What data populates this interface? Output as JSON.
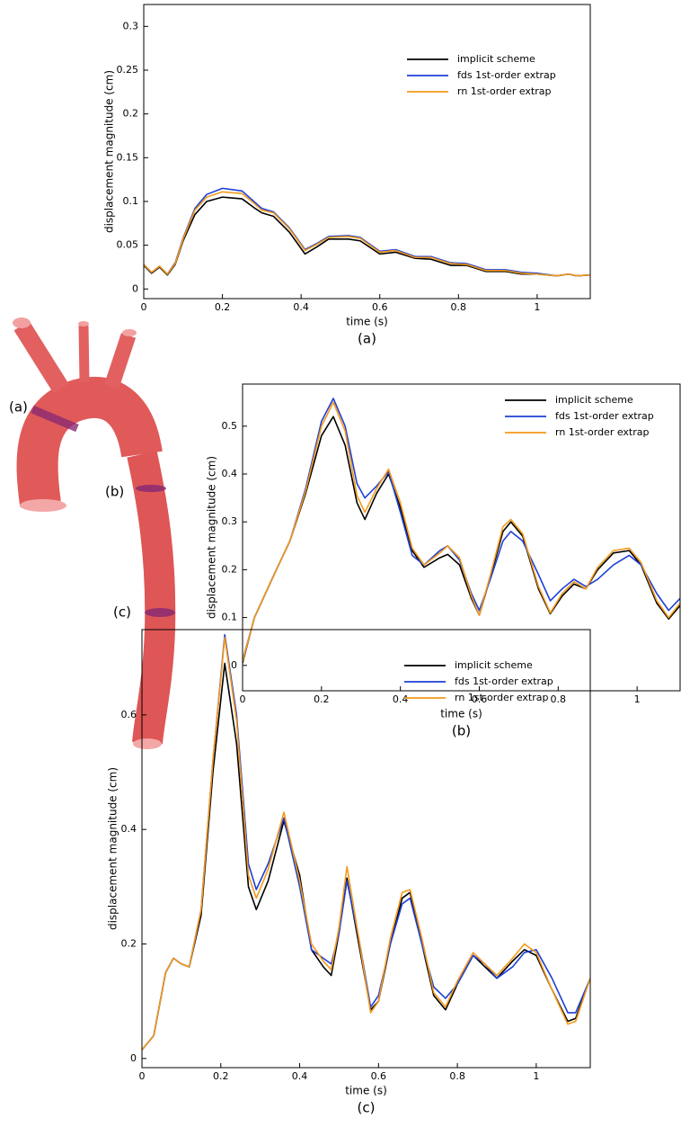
{
  "aorta_labels": [
    "(a)",
    "(b)",
    "(c)"
  ],
  "chart_data": [
    {
      "type": "line",
      "caption": "(a)",
      "xlabel": "time (s)",
      "ylabel": "displacement magnitude (cm)",
      "legend": "upper right",
      "xlim": [
        0,
        1.135
      ],
      "ylim": [
        -0.011,
        0.325
      ],
      "xticks": [
        0,
        0.2,
        0.4,
        0.6,
        0.8,
        1
      ],
      "yticks": [
        0,
        0.05,
        0.1,
        0.15,
        0.2,
        0.25,
        0.3
      ],
      "x": [
        0,
        0.02,
        0.04,
        0.06,
        0.08,
        0.1,
        0.13,
        0.16,
        0.2,
        0.25,
        0.28,
        0.3,
        0.33,
        0.37,
        0.41,
        0.44,
        0.47,
        0.52,
        0.55,
        0.6,
        0.64,
        0.69,
        0.73,
        0.78,
        0.82,
        0.87,
        0.92,
        0.96,
        1.0,
        1.05,
        1.08,
        1.1,
        1.135
      ],
      "series": [
        {
          "name": "implicit scheme",
          "color": "#000000",
          "values": [
            0.027,
            0.018,
            0.025,
            0.016,
            0.028,
            0.055,
            0.085,
            0.1,
            0.105,
            0.103,
            0.093,
            0.087,
            0.083,
            0.065,
            0.04,
            0.048,
            0.057,
            0.057,
            0.055,
            0.04,
            0.042,
            0.035,
            0.034,
            0.027,
            0.027,
            0.02,
            0.02,
            0.017,
            0.017,
            0.015,
            0.017,
            0.015,
            0.016
          ]
        },
        {
          "name": "fds 1st-order extrap",
          "color": "#1f3fd6",
          "values": [
            0.028,
            0.019,
            0.026,
            0.017,
            0.03,
            0.058,
            0.092,
            0.108,
            0.115,
            0.112,
            0.1,
            0.092,
            0.088,
            0.07,
            0.045,
            0.052,
            0.06,
            0.061,
            0.059,
            0.043,
            0.045,
            0.037,
            0.037,
            0.03,
            0.029,
            0.022,
            0.022,
            0.019,
            0.018,
            0.015,
            0.017,
            0.015,
            0.016
          ]
        },
        {
          "name": "rn 1st-order extrap",
          "color": "#f39a1a",
          "values": [
            0.028,
            0.019,
            0.026,
            0.017,
            0.029,
            0.057,
            0.09,
            0.105,
            0.111,
            0.109,
            0.098,
            0.09,
            0.087,
            0.069,
            0.044,
            0.051,
            0.059,
            0.06,
            0.058,
            0.042,
            0.044,
            0.036,
            0.036,
            0.029,
            0.028,
            0.021,
            0.021,
            0.018,
            0.017,
            0.015,
            0.017,
            0.015,
            0.016
          ]
        }
      ]
    },
    {
      "type": "line",
      "caption": "(b)",
      "xlabel": "time (s)",
      "ylabel": "displacement magnitude (cm)",
      "legend": "upper right",
      "xlim": [
        0,
        1.109
      ],
      "ylim": [
        -0.053,
        0.588
      ],
      "xticks": [
        0,
        0.2,
        0.4,
        0.6,
        0.8,
        1
      ],
      "yticks": [
        0,
        0.1,
        0.2,
        0.3,
        0.4,
        0.5
      ],
      "x": [
        0,
        0.03,
        0.08,
        0.12,
        0.16,
        0.2,
        0.23,
        0.26,
        0.29,
        0.31,
        0.34,
        0.37,
        0.4,
        0.43,
        0.46,
        0.5,
        0.52,
        0.55,
        0.58,
        0.6,
        0.63,
        0.66,
        0.68,
        0.71,
        0.75,
        0.78,
        0.81,
        0.84,
        0.87,
        0.9,
        0.94,
        0.98,
        1.01,
        1.05,
        1.08,
        1.109
      ],
      "series": [
        {
          "name": "implicit scheme",
          "color": "#000000",
          "values": [
            0.005,
            0.1,
            0.19,
            0.26,
            0.36,
            0.48,
            0.52,
            0.46,
            0.34,
            0.305,
            0.36,
            0.4,
            0.33,
            0.24,
            0.205,
            0.225,
            0.232,
            0.21,
            0.14,
            0.105,
            0.19,
            0.28,
            0.3,
            0.27,
            0.16,
            0.108,
            0.145,
            0.17,
            0.16,
            0.2,
            0.235,
            0.24,
            0.21,
            0.13,
            0.097,
            0.125
          ]
        },
        {
          "name": "fds 1st-order extrap",
          "color": "#1f3fd6",
          "values": [
            0.01,
            0.1,
            0.19,
            0.26,
            0.37,
            0.51,
            0.558,
            0.5,
            0.38,
            0.35,
            0.375,
            0.405,
            0.32,
            0.23,
            0.21,
            0.24,
            0.25,
            0.22,
            0.15,
            0.115,
            0.185,
            0.26,
            0.28,
            0.26,
            0.19,
            0.135,
            0.16,
            0.18,
            0.165,
            0.18,
            0.21,
            0.23,
            0.21,
            0.15,
            0.115,
            0.14
          ]
        },
        {
          "name": "rn 1st-order extrap",
          "color": "#f39a1a",
          "values": [
            0.008,
            0.1,
            0.19,
            0.26,
            0.365,
            0.5,
            0.55,
            0.49,
            0.355,
            0.32,
            0.37,
            0.41,
            0.34,
            0.245,
            0.21,
            0.235,
            0.25,
            0.225,
            0.145,
            0.105,
            0.195,
            0.29,
            0.305,
            0.275,
            0.165,
            0.11,
            0.15,
            0.175,
            0.16,
            0.205,
            0.24,
            0.245,
            0.215,
            0.135,
            0.1,
            0.13
          ]
        }
      ]
    },
    {
      "type": "line",
      "caption": "(c)",
      "xlabel": "time (s)",
      "ylabel": "displacement magnitude (cm)",
      "legend": "upper right",
      "xlim": [
        0,
        1.137
      ],
      "ylim": [
        -0.016,
        0.749
      ],
      "xticks": [
        0,
        0.2,
        0.4,
        0.6,
        0.8,
        1
      ],
      "yticks": [
        0,
        0.2,
        0.4,
        0.6
      ],
      "x": [
        0,
        0.03,
        0.06,
        0.08,
        0.1,
        0.12,
        0.15,
        0.18,
        0.21,
        0.24,
        0.27,
        0.29,
        0.32,
        0.36,
        0.4,
        0.43,
        0.46,
        0.48,
        0.5,
        0.52,
        0.55,
        0.58,
        0.6,
        0.63,
        0.66,
        0.68,
        0.71,
        0.74,
        0.77,
        0.8,
        0.84,
        0.87,
        0.9,
        0.94,
        0.97,
        1.0,
        1.04,
        1.08,
        1.1,
        1.137
      ],
      "series": [
        {
          "name": "implicit scheme",
          "color": "#000000",
          "values": [
            0.015,
            0.04,
            0.15,
            0.175,
            0.165,
            0.16,
            0.25,
            0.5,
            0.69,
            0.55,
            0.3,
            0.26,
            0.31,
            0.415,
            0.32,
            0.19,
            0.16,
            0.145,
            0.22,
            0.315,
            0.2,
            0.085,
            0.1,
            0.2,
            0.28,
            0.29,
            0.2,
            0.11,
            0.085,
            0.13,
            0.18,
            0.16,
            0.14,
            0.17,
            0.19,
            0.18,
            0.12,
            0.065,
            0.07,
            0.14
          ]
        },
        {
          "name": "fds 1st-order extrap",
          "color": "#1f3fd6",
          "values": [
            0.015,
            0.04,
            0.15,
            0.175,
            0.165,
            0.16,
            0.26,
            0.52,
            0.74,
            0.6,
            0.34,
            0.295,
            0.34,
            0.42,
            0.3,
            0.19,
            0.175,
            0.165,
            0.22,
            0.31,
            0.21,
            0.09,
            0.11,
            0.2,
            0.27,
            0.28,
            0.2,
            0.125,
            0.105,
            0.13,
            0.18,
            0.165,
            0.14,
            0.16,
            0.185,
            0.19,
            0.14,
            0.08,
            0.08,
            0.14
          ]
        },
        {
          "name": "rn 1st-order extrap",
          "color": "#f39a1a",
          "values": [
            0.015,
            0.04,
            0.15,
            0.175,
            0.165,
            0.16,
            0.26,
            0.52,
            0.735,
            0.59,
            0.32,
            0.28,
            0.33,
            0.43,
            0.31,
            0.2,
            0.17,
            0.155,
            0.23,
            0.335,
            0.21,
            0.08,
            0.1,
            0.21,
            0.29,
            0.295,
            0.21,
            0.115,
            0.09,
            0.135,
            0.185,
            0.165,
            0.145,
            0.175,
            0.2,
            0.185,
            0.12,
            0.06,
            0.065,
            0.14
          ]
        }
      ]
    }
  ]
}
